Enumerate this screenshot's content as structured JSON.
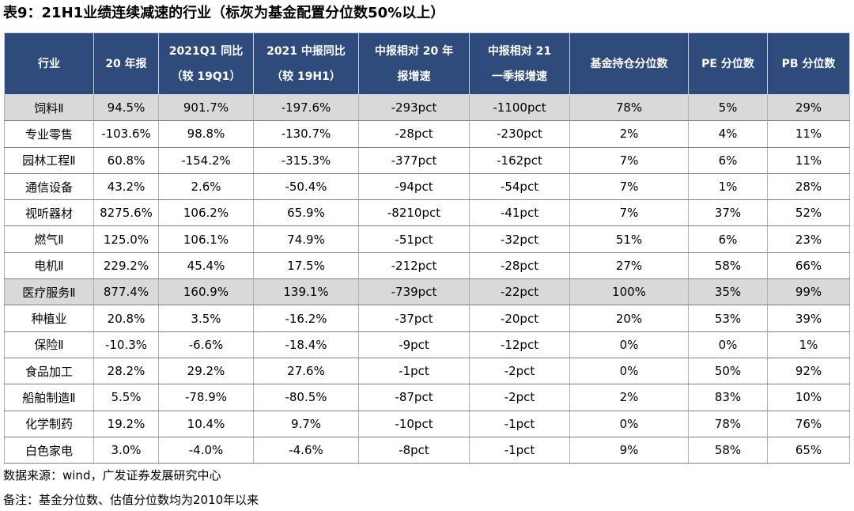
{
  "title": "表9：21H1业绩连续减速的行业（标灰为基金配置分位数50%以上）",
  "table": {
    "header": [
      [
        "行业"
      ],
      [
        "20 年报"
      ],
      [
        "2021Q1 同比",
        "（较 19Q1）"
      ],
      [
        "2021 中报同比",
        "（较 19H1）"
      ],
      [
        "中报相对 20 年",
        "报增速"
      ],
      [
        "中报相对 21",
        "一季报增速"
      ],
      [
        "基金持仓分位数"
      ],
      [
        "PE 分位数"
      ],
      [
        "PB 分位数"
      ]
    ],
    "rows": [
      {
        "cells": [
          "饲料Ⅱ",
          "94.5%",
          "901.7%",
          "-197.6%",
          "-293pct",
          "-1100pct",
          "78%",
          "5%",
          "29%"
        ],
        "shaded": true
      },
      {
        "cells": [
          "专业零售",
          "-103.6%",
          "98.8%",
          "-130.7%",
          "-28pct",
          "-230pct",
          "2%",
          "4%",
          "11%"
        ],
        "shaded": false
      },
      {
        "cells": [
          "园林工程Ⅱ",
          "60.8%",
          "-154.2%",
          "-315.3%",
          "-377pct",
          "-162pct",
          "7%",
          "6%",
          "11%"
        ],
        "shaded": false
      },
      {
        "cells": [
          "通信设备",
          "43.2%",
          "2.6%",
          "-50.4%",
          "-94pct",
          "-54pct",
          "7%",
          "1%",
          "28%"
        ],
        "shaded": false
      },
      {
        "cells": [
          "视听器材",
          "8275.6%",
          "106.2%",
          "65.9%",
          "-8210pct",
          "-41pct",
          "7%",
          "37%",
          "52%"
        ],
        "shaded": false
      },
      {
        "cells": [
          "燃气Ⅱ",
          "125.0%",
          "106.1%",
          "74.9%",
          "-51pct",
          "-32pct",
          "51%",
          "6%",
          "23%"
        ],
        "shaded": false
      },
      {
        "cells": [
          "电机Ⅱ",
          "229.2%",
          "45.4%",
          "17.5%",
          "-212pct",
          "-28pct",
          "27%",
          "58%",
          "66%"
        ],
        "shaded": false
      },
      {
        "cells": [
          "医疗服务Ⅱ",
          "877.4%",
          "160.9%",
          "139.1%",
          "-739pct",
          "-22pct",
          "100%",
          "35%",
          "99%"
        ],
        "shaded": true
      },
      {
        "cells": [
          "种植业",
          "20.8%",
          "3.5%",
          "-16.2%",
          "-37pct",
          "-20pct",
          "20%",
          "53%",
          "39%"
        ],
        "shaded": false
      },
      {
        "cells": [
          "保险Ⅱ",
          "-10.3%",
          "-6.6%",
          "-18.4%",
          "-9pct",
          "-12pct",
          "0%",
          "0%",
          "1%"
        ],
        "shaded": false
      },
      {
        "cells": [
          "食品加工",
          "28.2%",
          "29.2%",
          "27.6%",
          "-1pct",
          "-2pct",
          "0%",
          "50%",
          "92%"
        ],
        "shaded": false
      },
      {
        "cells": [
          "船舶制造Ⅱ",
          "5.5%",
          "-78.9%",
          "-80.5%",
          "-87pct",
          "-2pct",
          "2%",
          "83%",
          "10%"
        ],
        "shaded": false
      },
      {
        "cells": [
          "化学制药",
          "19.2%",
          "10.4%",
          "9.7%",
          "-10pct",
          "-1pct",
          "0%",
          "78%",
          "76%"
        ],
        "shaded": false
      },
      {
        "cells": [
          "白色家电",
          "3.0%",
          "-4.0%",
          "-4.6%",
          "-8pct",
          "-1pct",
          "9%",
          "58%",
          "65%"
        ],
        "shaded": false
      }
    ]
  },
  "source": "数据来源：wind，广发证券发展研究中心",
  "note": "备注：基金分位数、估值分位数均为2010年以来"
}
